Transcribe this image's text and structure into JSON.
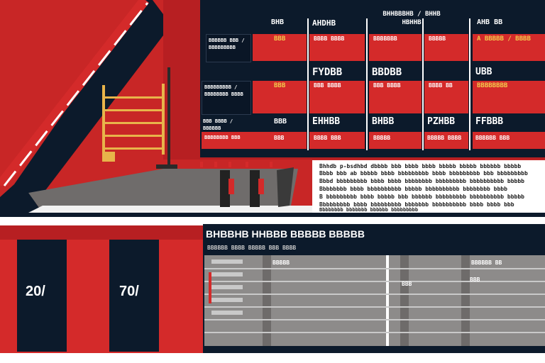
{
  "colors": {
    "red": "#d42a2a",
    "dark_red": "#b71f22",
    "navy": "#0c1a2b",
    "grey_panel": "#8d8b8a",
    "grey_dark": "#5f5c5b",
    "yellow_accent": "#e8b44a"
  },
  "top_table": {
    "headers": [
      "BHB",
      "AHDHB",
      "BHHBBBHB / BHHB HBHHB",
      "AHB BB",
      "AHB"
    ],
    "rows": [
      {
        "label": "BBBBBB BBB / BBBBBBBBB",
        "cells": [
          "BBB",
          "BBBB BBBB",
          "BBBBBBB",
          "BBBBB",
          "A BBBBB / BBBB"
        ]
      },
      {
        "label": "",
        "cells": [
          "",
          "FYDBB",
          "BBDBB",
          "",
          "UBB"
        ]
      },
      {
        "label": "BBBBBBBBB / BBBBBBBB BBBB",
        "cells": [
          "BBB",
          "BBB BBBB",
          "BBB BBBB",
          "BBBB BB",
          "BBBBBBBB"
        ]
      },
      {
        "label": "BBB BBBB / BBBBBB",
        "cells": [
          "BBB",
          "EHHBB",
          "BHBB",
          "PZHBB",
          "FFBBB"
        ]
      },
      {
        "label": "BBBBBBBB BBB",
        "cells": [
          "BBB",
          "BBBB BBB",
          "BBBBB",
          "BBBBB BBBB",
          "BBBBBB BBB"
        ]
      }
    ]
  },
  "paragraph": [
    "Bhhdb p-bsdhbd dbbbb bbb bbbb bbbb bbbbb bbbbb bbbbbb bbbbb",
    "Bbbb bbb ab bbbbb bbbb bbbbbbbbb bbbb bbbbbbbbb bbb bbbbbbbbb",
    "Bbbd bbbbbbbbb bbbb bbbb bbbbbbbb bbbbbbbbb bbbbbbbbbb bbbbb",
    "Bbbbbbbb bbbb bbbbbbbbbb bbbbb bbbbbbbbbb bbbbbbbb bbbb",
    "B bbbbbbbbb bbbb bbbbb bbb bbbbbb bbbbbbbbb bbbbbbbbbb bbbbb",
    "Bbbbbbbbb bbbb bbbbbbbbb bbbbbbb bbbbbbbbbb bbbb bbbb bbb",
    "Bbbbbbbb bbbbbbb bbbbbb bbbbbbbbb"
  ],
  "bottom_panel": {
    "title": "BHBBHB HHBBB BBBBB BBBBB",
    "subtitle": "BBBBBB BBBB BBBBB BBB BBBB"
  },
  "left_tiles": [
    {
      "value": "20/"
    },
    {
      "value": "70/"
    }
  ],
  "grid_labels": {
    "col2_header": "BBBBB",
    "col3_header": "BBBBBB BB",
    "row_small": [
      "BBB",
      "BBB"
    ]
  }
}
